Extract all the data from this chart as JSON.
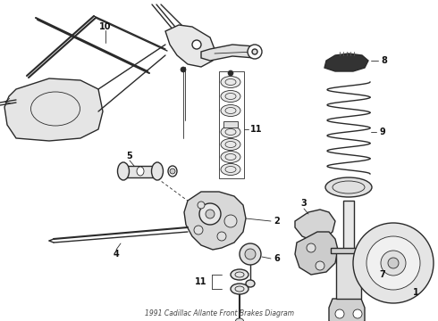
{
  "title": "1991 Cadillac Allante Front Brakes Diagram",
  "bg_color": "#ffffff",
  "line_color": "#2a2a2a",
  "label_color": "#111111",
  "fig_width": 4.9,
  "fig_height": 3.6,
  "dpi": 100
}
